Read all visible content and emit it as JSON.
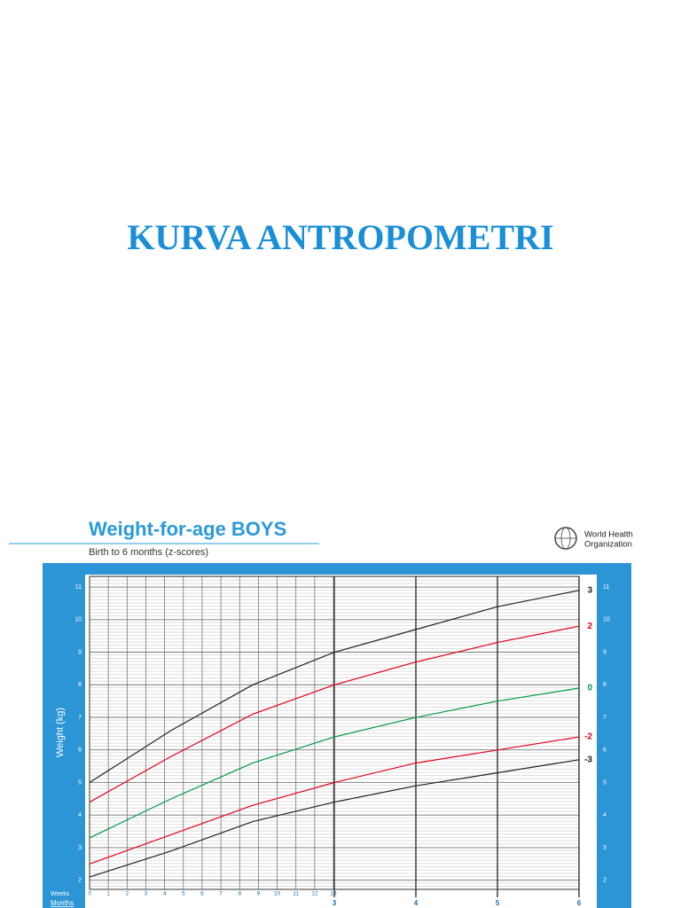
{
  "slide_title": "KURVA ANTROPOMETRI",
  "logo_text": [
    "World Health",
    "Organization"
  ],
  "chart_data": {
    "type": "line",
    "title": "Weight-for-age BOYS",
    "subtitle": "Birth to 6 months (z-scores)",
    "y_label": "Weight (kg)",
    "x_label": "Months",
    "weeks_label": "Weeks",
    "x": [
      0,
      1,
      2,
      3,
      4,
      5,
      6
    ],
    "xlim": [
      0,
      6
    ],
    "xticks": [
      3,
      4,
      5,
      6
    ],
    "weeks_xlim": [
      0,
      26.09
    ],
    "weeks_ticks": [
      0,
      1,
      2,
      3,
      4,
      5,
      6,
      7,
      8,
      9,
      10,
      11,
      12,
      13
    ],
    "ylim": [
      1.72,
      11.33
    ],
    "yticks": [
      2,
      3,
      4,
      5,
      6,
      7,
      8,
      9,
      10,
      11
    ],
    "grid": true,
    "series": [
      {
        "name": "3",
        "color": "#222222",
        "values": [
          5.0,
          6.6,
          8.0,
          9.0,
          9.7,
          10.4,
          10.9
        ]
      },
      {
        "name": "2",
        "color": "#e2001a",
        "values": [
          4.4,
          5.8,
          7.1,
          8.0,
          8.7,
          9.3,
          9.8
        ]
      },
      {
        "name": "0",
        "color": "#009a44",
        "values": [
          3.3,
          4.5,
          5.6,
          6.4,
          7.0,
          7.5,
          7.9
        ]
      },
      {
        "name": "-2",
        "color": "#e2001a",
        "values": [
          2.5,
          3.4,
          4.3,
          5.0,
          5.6,
          6.0,
          6.4
        ]
      },
      {
        "name": "-3",
        "color": "#222222",
        "values": [
          2.1,
          2.9,
          3.8,
          4.4,
          4.9,
          5.3,
          5.7
        ]
      }
    ]
  }
}
